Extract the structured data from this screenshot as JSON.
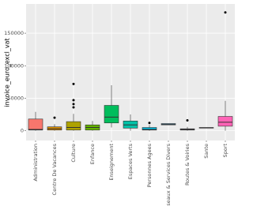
{
  "chart_data": {
    "type": "box",
    "y_label": "invoice_euro_excl_vat",
    "categories": [
      "Administration",
      "Centre De Vacances",
      "Culture",
      "Enfance",
      "Enseignement",
      "Espaces Verts",
      "Personnes Agees",
      "Reseaux & Services Divers",
      "Routes & Voiries",
      "Sante",
      "Sport"
    ],
    "colors": [
      "#F8766D",
      "#DB8E00",
      "#AEA200",
      "#64B200",
      "#00BD5C",
      "#00C1A7",
      "#00BADE",
      "#00A6FF",
      "#B385FF",
      "#EF67EB",
      "#FF63B6"
    ],
    "boxes": [
      {
        "min": 0,
        "q1": 1000,
        "median": 2000,
        "q3": 18000,
        "max": 29000,
        "outliers": []
      },
      {
        "min": 0,
        "q1": 1000,
        "median": 3000,
        "q3": 6000,
        "max": 10000,
        "outliers": [
          20000
        ]
      },
      {
        "min": 0,
        "q1": 1000,
        "median": 5000,
        "q3": 14000,
        "max": 26000,
        "outliers": [
          36000,
          41000,
          47000,
          72000
        ]
      },
      {
        "min": 0,
        "q1": 1000,
        "median": 5000,
        "q3": 9000,
        "max": 15000,
        "outliers": []
      },
      {
        "min": 5000,
        "q1": 12000,
        "median": 21000,
        "q3": 39000,
        "max": 70000,
        "outliers": []
      },
      {
        "min": 0,
        "q1": 4000,
        "median": 9000,
        "q3": 15000,
        "max": 25000,
        "outliers": []
      },
      {
        "min": 0,
        "q1": 1000,
        "median": 2000,
        "q3": 5000,
        "max": 9000,
        "outliers": [
          12000
        ]
      },
      {
        "min": 9000,
        "q1": 9000,
        "median": 10000,
        "q3": 11000,
        "max": 11000,
        "outliers": []
      },
      {
        "min": 0,
        "q1": 1000,
        "median": 2000,
        "q3": 3000,
        "max": 6000,
        "outliers": [
          16000
        ]
      },
      {
        "min": 4000,
        "q1": 4000,
        "median": 4500,
        "q3": 5000,
        "max": 5000,
        "outliers": []
      },
      {
        "min": 0,
        "q1": 7000,
        "median": 13000,
        "q3": 22000,
        "max": 46000,
        "outliers": [
          182000
        ]
      }
    ],
    "ylim": [
      -15000,
      195000
    ],
    "yticks": [
      0,
      50000,
      100000,
      150000
    ],
    "grid": true
  }
}
